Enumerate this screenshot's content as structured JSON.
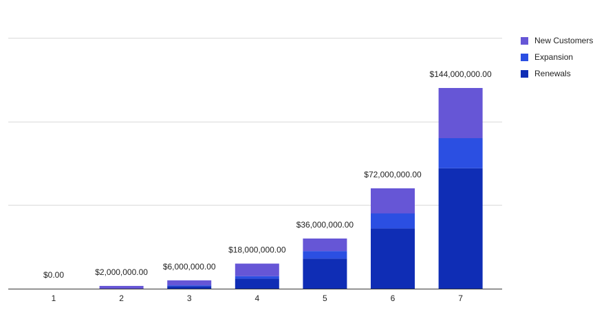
{
  "colors": {
    "new_customers": "#6656D6",
    "expansion": "#2B4FE2",
    "renewals": "#0F2DB5",
    "grid": "#d9d9d9",
    "axis": "#333333",
    "text": "#222222"
  },
  "chart_data": {
    "type": "bar",
    "stacked": true,
    "title": "",
    "xlabel": "",
    "ylabel": "",
    "categories": [
      "1",
      "2",
      "3",
      "4",
      "5",
      "6",
      "7"
    ],
    "series": [
      {
        "name": "Renewals",
        "values": [
          0,
          0,
          1800000,
          7200000,
          21600000,
          43200000,
          86400000
        ]
      },
      {
        "name": "Expansion",
        "values": [
          0,
          0,
          600000,
          1800000,
          5400000,
          10800000,
          21600000
        ]
      },
      {
        "name": "New Customers",
        "values": [
          0,
          2000000,
          3600000,
          9000000,
          9000000,
          18000000,
          36000000
        ]
      }
    ],
    "totals": [
      0,
      2000000,
      6000000,
      18000000,
      36000000,
      72000000,
      144000000
    ],
    "total_labels": [
      "$0.00",
      "$2,000,000.00",
      "$6,000,000.00",
      "$18,000,000.00",
      "$36,000,000.00",
      "$72,000,000.00",
      "$144,000,000.00"
    ],
    "ylim": [
      0,
      180000000
    ],
    "yticks": [
      0,
      60000000,
      120000000,
      180000000
    ],
    "show_tick_labels_y": false,
    "grid": true,
    "legend": {
      "position": "right",
      "entries": [
        "New Customers",
        "Expansion",
        "Renewals"
      ]
    }
  }
}
